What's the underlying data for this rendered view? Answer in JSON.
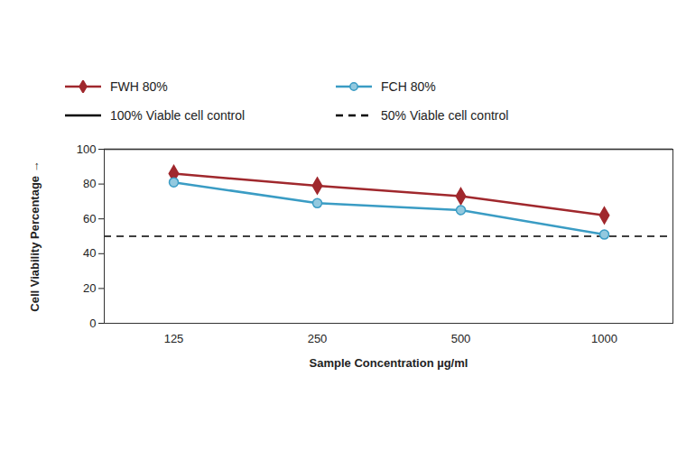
{
  "chart_data": {
    "type": "line",
    "categories": [
      "125",
      "250",
      "500",
      "1000"
    ],
    "series": [
      {
        "name": "FWH 80%",
        "color": "#a0282d",
        "marker": "diamond",
        "values": [
          86,
          79,
          73,
          62
        ]
      },
      {
        "name": "FCH 80%",
        "color": "#3a9cc4",
        "marker": "circle",
        "values": [
          81,
          69,
          65,
          51
        ]
      }
    ],
    "reference_lines": [
      {
        "name": "100% Viable cell control",
        "value": 100,
        "color": "#000000",
        "line_style": "solid"
      },
      {
        "name": "50% Viable cell control",
        "value": 50,
        "color": "#000000",
        "line_style": "dashed"
      }
    ],
    "x_label": "Sample Concentration µg/ml",
    "y_label": "Cell Viability Percentage",
    "ylim": [
      0,
      100
    ],
    "yticks": [
      0,
      20,
      40,
      60,
      80,
      100
    ],
    "legend": "top"
  }
}
